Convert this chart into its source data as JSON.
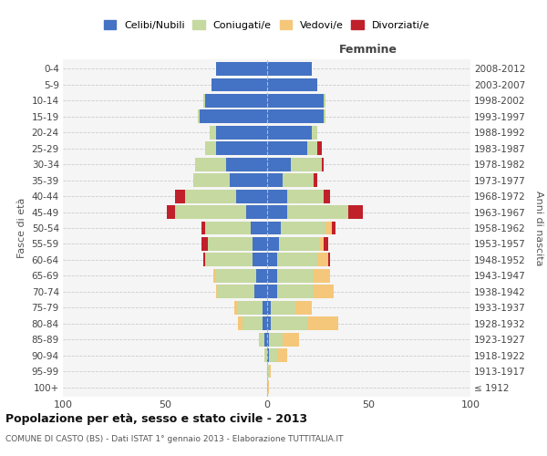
{
  "age_groups": [
    "100+",
    "95-99",
    "90-94",
    "85-89",
    "80-84",
    "75-79",
    "70-74",
    "65-69",
    "60-64",
    "55-59",
    "50-54",
    "45-49",
    "40-44",
    "35-39",
    "30-34",
    "25-29",
    "20-24",
    "15-19",
    "10-14",
    "5-9",
    "0-4"
  ],
  "birth_years": [
    "≤ 1912",
    "1913-1917",
    "1918-1922",
    "1923-1927",
    "1928-1932",
    "1933-1937",
    "1938-1942",
    "1943-1947",
    "1948-1952",
    "1953-1957",
    "1958-1962",
    "1963-1967",
    "1968-1972",
    "1973-1977",
    "1978-1982",
    "1983-1987",
    "1988-1992",
    "1993-1997",
    "1998-2002",
    "2003-2007",
    "2008-2012"
  ],
  "males": {
    "celibe": [
      0,
      0,
      0,
      1,
      2,
      2,
      6,
      5,
      7,
      7,
      8,
      10,
      15,
      18,
      20,
      25,
      25,
      33,
      30,
      27,
      25
    ],
    "coniugato": [
      0,
      0,
      1,
      3,
      10,
      12,
      18,
      20,
      23,
      22,
      22,
      35,
      25,
      18,
      15,
      5,
      3,
      1,
      1,
      0,
      0
    ],
    "vedovo": [
      0,
      0,
      0,
      0,
      2,
      2,
      1,
      1,
      0,
      0,
      0,
      0,
      0,
      0,
      0,
      0,
      0,
      0,
      0,
      0,
      0
    ],
    "divorziato": [
      0,
      0,
      0,
      0,
      0,
      0,
      0,
      0,
      1,
      3,
      2,
      4,
      5,
      0,
      0,
      0,
      0,
      0,
      0,
      0,
      0
    ]
  },
  "females": {
    "nubile": [
      0,
      0,
      1,
      1,
      2,
      2,
      5,
      5,
      5,
      6,
      7,
      10,
      10,
      8,
      12,
      20,
      22,
      28,
      28,
      25,
      22
    ],
    "coniugata": [
      0,
      1,
      4,
      7,
      18,
      12,
      18,
      18,
      20,
      20,
      22,
      30,
      18,
      15,
      15,
      5,
      3,
      1,
      1,
      0,
      0
    ],
    "vedova": [
      1,
      1,
      5,
      8,
      15,
      8,
      10,
      8,
      5,
      2,
      3,
      0,
      0,
      0,
      0,
      0,
      0,
      0,
      0,
      0,
      0
    ],
    "divorziata": [
      0,
      0,
      0,
      0,
      0,
      0,
      0,
      0,
      1,
      2,
      2,
      7,
      3,
      2,
      1,
      2,
      0,
      0,
      0,
      0,
      0
    ]
  },
  "colors": {
    "celibe": "#4472C4",
    "coniugato": "#C5D9A0",
    "vedovo": "#F5C77A",
    "divorziato": "#C0202A"
  },
  "xlim": 100,
  "title": "Popolazione per età, sesso e stato civile - 2013",
  "subtitle": "COMUNE DI CASTO (BS) - Dati ISTAT 1° gennaio 2013 - Elaborazione TUTTITALIA.IT",
  "ylabel_left": "Fasce di età",
  "ylabel_right": "Anni di nascita",
  "xlabel_femmine": "Femmine",
  "plot_bg": "#f5f5f5",
  "bg_color": "#ffffff",
  "grid_color": "#cccccc"
}
